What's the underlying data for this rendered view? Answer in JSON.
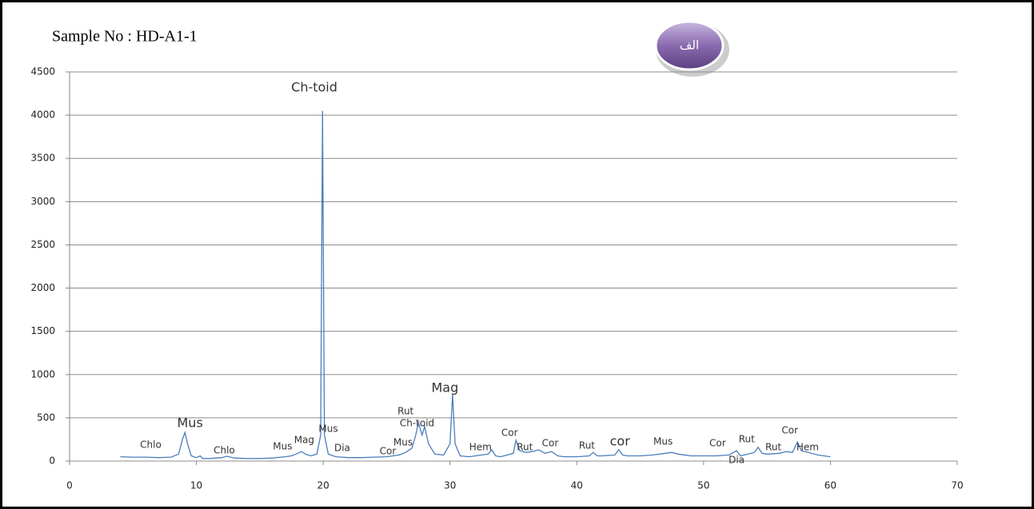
{
  "chart_data": {
    "type": "line",
    "title": "Sample No : HD-A1-1",
    "badge": "الف",
    "x": [
      4,
      5,
      6,
      7,
      8,
      8.6,
      8.9,
      9.1,
      9.3,
      9.6,
      10,
      10.3,
      10.5,
      11,
      12,
      12.4,
      13,
      14,
      15,
      16,
      17,
      17.5,
      18,
      18.3,
      18.6,
      19,
      19.5,
      19.8,
      19.95,
      20.1,
      20.4,
      21,
      22,
      23,
      24,
      25,
      25.5,
      26,
      26.5,
      27,
      27.3,
      27.5,
      27.8,
      28,
      28.3,
      28.8,
      29.5,
      30,
      30.2,
      30.4,
      30.8,
      31.5,
      32,
      33,
      33.3,
      33.6,
      34,
      35,
      35.2,
      35.5,
      36,
      36.5,
      37,
      37.5,
      38,
      38.5,
      39,
      40,
      41,
      41.3,
      41.6,
      42,
      43,
      43.3,
      43.6,
      44,
      45,
      46,
      47,
      47.5,
      48,
      49,
      50,
      51,
      52,
      52.6,
      52.9,
      53.5,
      54,
      54.3,
      54.6,
      55,
      56,
      56.5,
      57,
      57.4,
      57.7,
      58,
      59,
      60
    ],
    "series": [
      {
        "name": "HD-A1-1",
        "color": "#4a7ebb",
        "values": [
          50,
          45,
          45,
          40,
          45,
          80,
          250,
          330,
          200,
          60,
          40,
          60,
          30,
          30,
          40,
          55,
          35,
          30,
          30,
          35,
          50,
          60,
          90,
          110,
          80,
          60,
          80,
          300,
          4050,
          300,
          80,
          50,
          40,
          40,
          45,
          50,
          60,
          70,
          100,
          150,
          300,
          450,
          300,
          400,
          200,
          80,
          70,
          200,
          770,
          200,
          60,
          50,
          60,
          80,
          130,
          60,
          50,
          90,
          240,
          120,
          100,
          110,
          130,
          90,
          110,
          60,
          50,
          50,
          60,
          100,
          60,
          60,
          70,
          130,
          70,
          60,
          60,
          70,
          90,
          100,
          80,
          60,
          60,
          60,
          70,
          120,
          60,
          80,
          100,
          160,
          90,
          80,
          90,
          110,
          100,
          220,
          120,
          110,
          70,
          50
        ]
      }
    ],
    "xlim": [
      0,
      70
    ],
    "xticks": [
      0,
      10,
      20,
      30,
      40,
      50,
      60,
      70
    ],
    "ylim": [
      0,
      4500
    ],
    "yticks": [
      0,
      500,
      1000,
      1500,
      2000,
      2500,
      3000,
      3500,
      4000,
      4500
    ],
    "grid": true,
    "annotations": [
      {
        "text": "Ch-toid",
        "x": 19.3,
        "y": 4315
      },
      {
        "text": "Mus",
        "x": 9.5,
        "y": 434
      },
      {
        "text": "Chlo",
        "x": 6.4,
        "y": 185
      },
      {
        "text": "Chlo",
        "x": 12.2,
        "y": 120
      },
      {
        "text": "Mus",
        "x": 16.8,
        "y": 166
      },
      {
        "text": "Mag",
        "x": 18.5,
        "y": 240
      },
      {
        "text": "Mus",
        "x": 20.4,
        "y": 370
      },
      {
        "text": "Dia",
        "x": 21.5,
        "y": 148
      },
      {
        "text": "Cor",
        "x": 25.1,
        "y": 111
      },
      {
        "text": "Mus",
        "x": 26.3,
        "y": 213
      },
      {
        "text": "Rut",
        "x": 26.5,
        "y": 573
      },
      {
        "text": "Ch-toid",
        "x": 27.4,
        "y": 434
      },
      {
        "text": "Mag",
        "x": 29.6,
        "y": 841
      },
      {
        "text": "Hem",
        "x": 32.4,
        "y": 157
      },
      {
        "text": "Cor",
        "x": 34.7,
        "y": 323
      },
      {
        "text": "Rut",
        "x": 35.9,
        "y": 157
      },
      {
        "text": "Cor",
        "x": 37.9,
        "y": 203
      },
      {
        "text": "Rut",
        "x": 40.8,
        "y": 176
      },
      {
        "text": "cor",
        "x": 43.4,
        "y": 222
      },
      {
        "text": "Mus",
        "x": 46.8,
        "y": 222
      },
      {
        "text": "Cor",
        "x": 51.1,
        "y": 203
      },
      {
        "text": "Dia",
        "x": 52.6,
        "y": 9
      },
      {
        "text": "Rut",
        "x": 53.4,
        "y": 250
      },
      {
        "text": "Rut",
        "x": 55.5,
        "y": 157
      },
      {
        "text": "Cor",
        "x": 56.8,
        "y": 351
      },
      {
        "text": "Hem",
        "x": 58.2,
        "y": 157
      }
    ]
  }
}
